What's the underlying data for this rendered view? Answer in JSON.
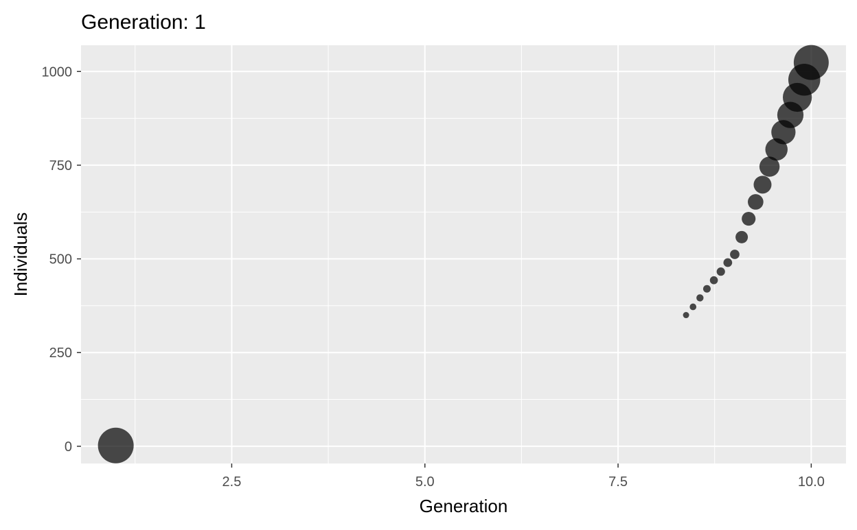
{
  "chart_data": {
    "type": "scatter",
    "title": "Generation: 1",
    "xlabel": "Generation",
    "ylabel": "Individuals",
    "xlim": [
      0.55,
      10.45
    ],
    "ylim": [
      -46,
      1070
    ],
    "x_ticks": [
      2.5,
      5.0,
      7.5,
      10.0
    ],
    "x_tick_labels": [
      "2.5",
      "5.0",
      "7.5",
      "10.0"
    ],
    "y_ticks": [
      0,
      250,
      500,
      750,
      1000
    ],
    "y_tick_labels": [
      "0",
      "250",
      "500",
      "750",
      "1000"
    ],
    "grid": true,
    "legend": "none",
    "point_color": "#000000",
    "point_opacity": 0.7,
    "panel_background": "#ebebeb",
    "grid_color": "#ffffff",
    "points": [
      {
        "x": 1.0,
        "y": 2,
        "size": 1.0
      },
      {
        "x": 8.38,
        "y": 350,
        "size": 0.03
      },
      {
        "x": 8.47,
        "y": 372,
        "size": 0.035
      },
      {
        "x": 8.56,
        "y": 396,
        "size": 0.04
      },
      {
        "x": 8.65,
        "y": 420,
        "size": 0.045
      },
      {
        "x": 8.74,
        "y": 443,
        "size": 0.05
      },
      {
        "x": 8.83,
        "y": 466,
        "size": 0.055
      },
      {
        "x": 8.92,
        "y": 490,
        "size": 0.06
      },
      {
        "x": 9.01,
        "y": 512,
        "size": 0.07
      },
      {
        "x": 9.1,
        "y": 558,
        "size": 0.12
      },
      {
        "x": 9.19,
        "y": 607,
        "size": 0.15
      },
      {
        "x": 9.28,
        "y": 652,
        "size": 0.19
      },
      {
        "x": 9.37,
        "y": 698,
        "size": 0.25
      },
      {
        "x": 9.46,
        "y": 746,
        "size": 0.32
      },
      {
        "x": 9.55,
        "y": 792,
        "size": 0.39
      },
      {
        "x": 9.64,
        "y": 838,
        "size": 0.46
      },
      {
        "x": 9.73,
        "y": 884,
        "size": 0.54
      },
      {
        "x": 9.82,
        "y": 931,
        "size": 0.66
      },
      {
        "x": 9.91,
        "y": 978,
        "size": 0.8
      },
      {
        "x": 10.0,
        "y": 1024,
        "size": 0.96
      }
    ]
  }
}
